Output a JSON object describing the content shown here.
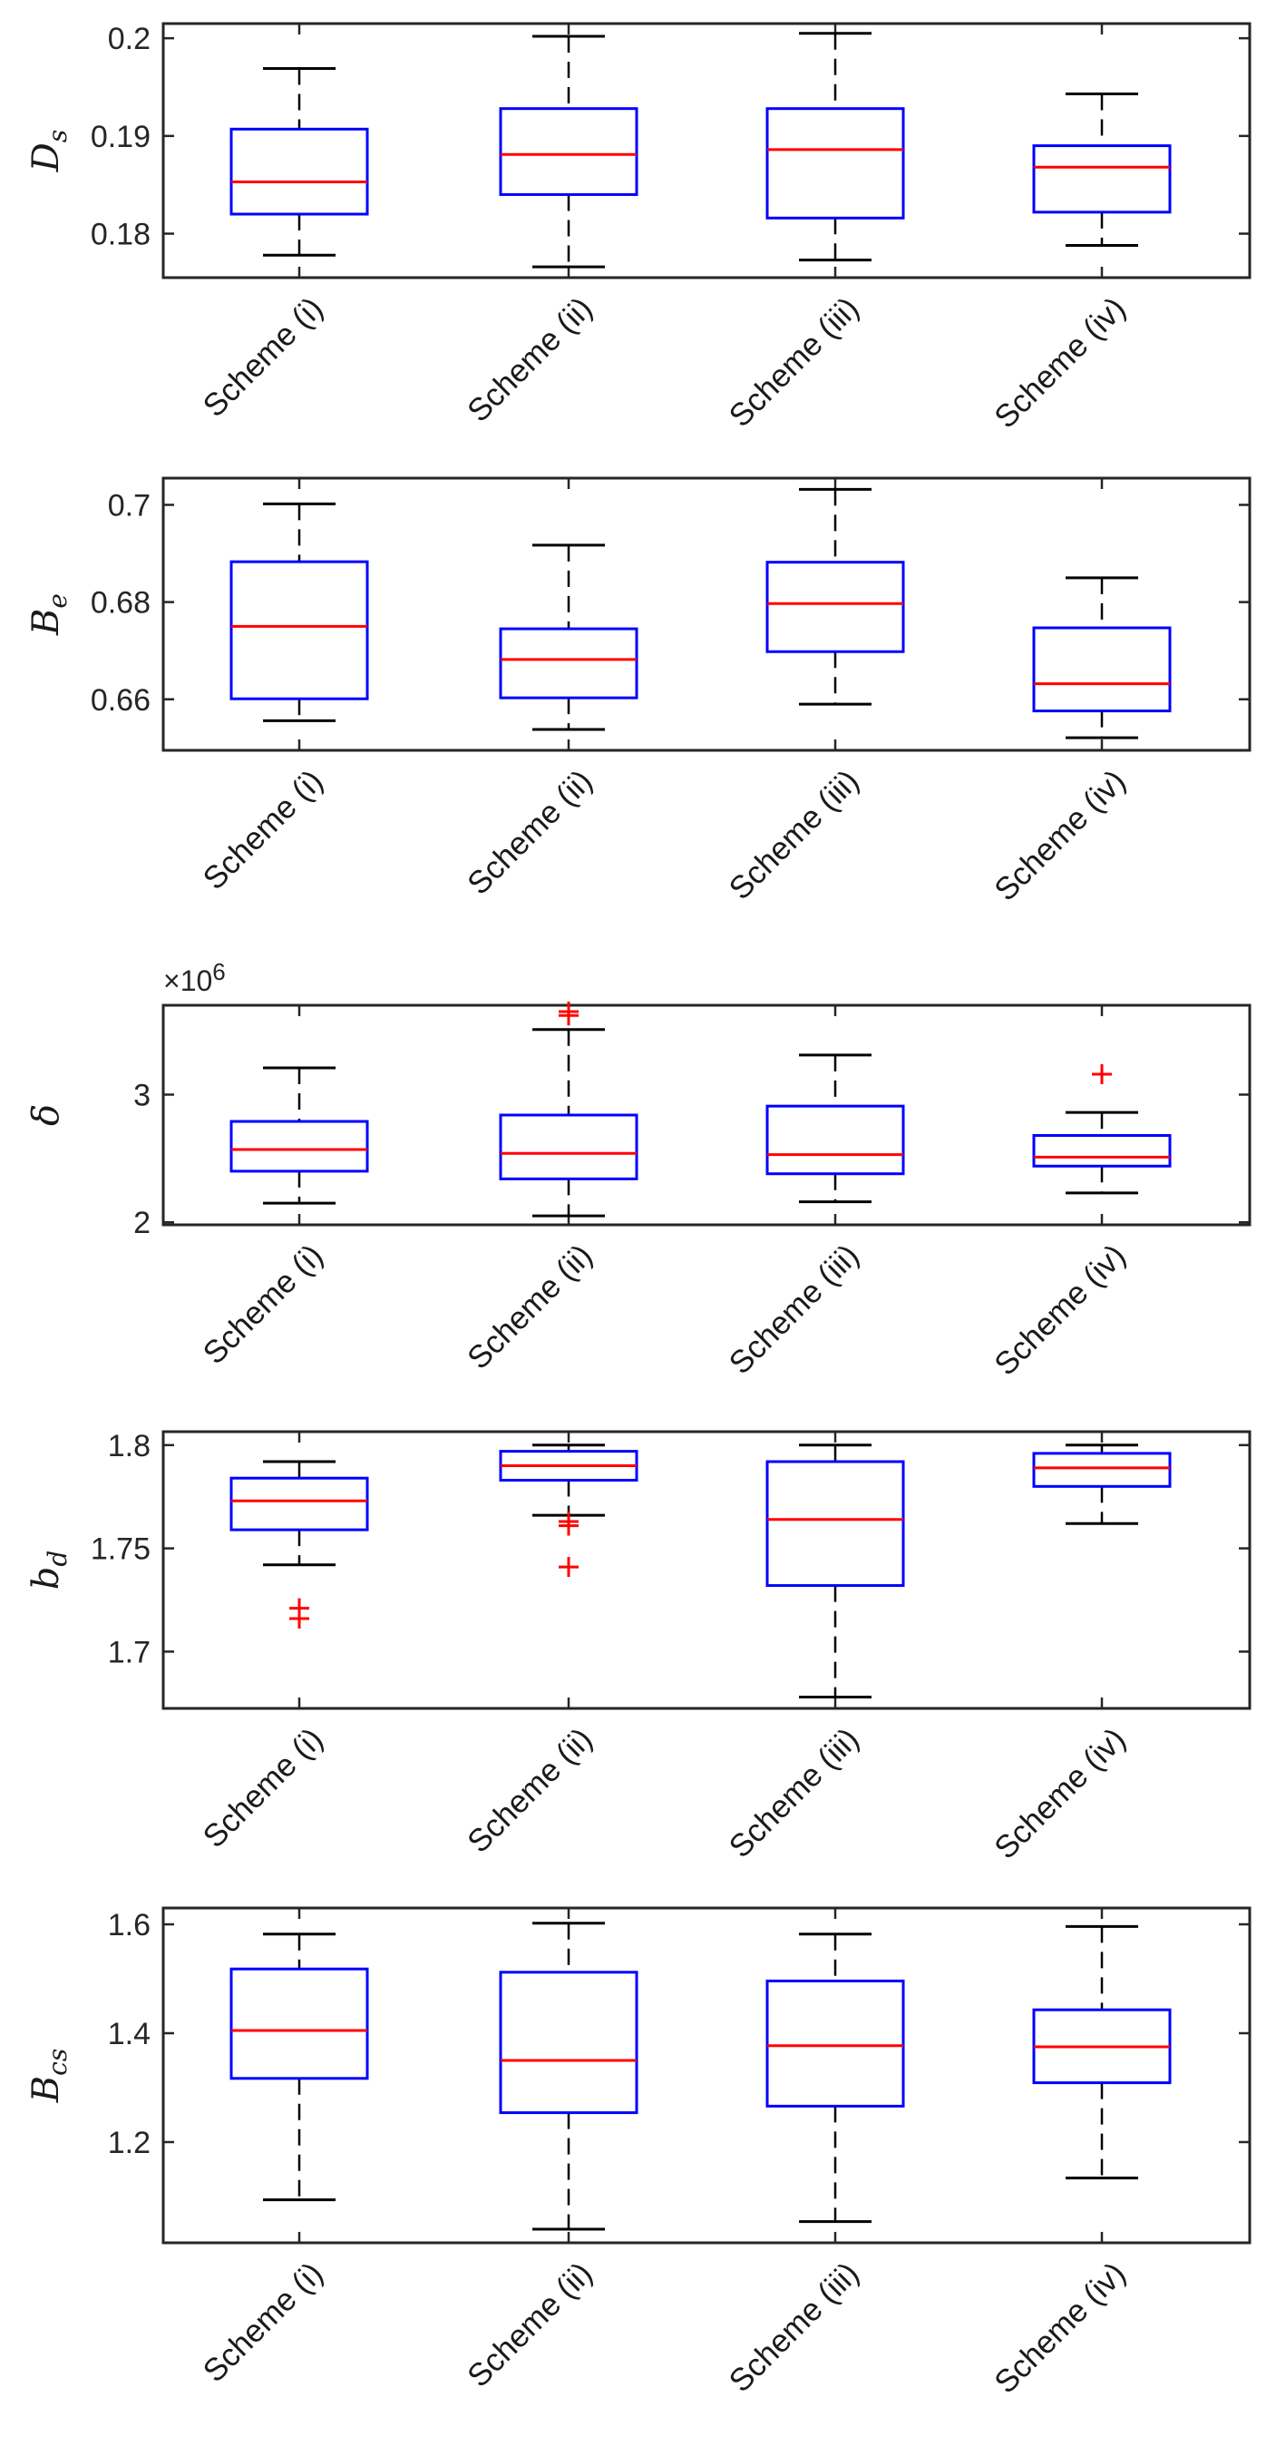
{
  "colors": {
    "box": "#0000ff",
    "median": "#ff0000",
    "whisker": "#000000",
    "outlier": "#ff0000",
    "axis": "#262626"
  },
  "chart_data": [
    {
      "type": "box",
      "ylabel": "D",
      "ylabel_sub": "s",
      "ylim": [
        0.1755,
        0.2015
      ],
      "yticks": [
        0.18,
        0.19,
        0.2
      ],
      "ytick_labels": [
        "0.18",
        "0.19",
        "0.2"
      ],
      "exponent_label": "",
      "categories": [
        "Scheme (i)",
        "Scheme (ii)",
        "Scheme (iii)",
        "Scheme (iv)"
      ],
      "boxes": [
        {
          "lower_whisker": 0.1778,
          "q1": 0.182,
          "median": 0.1853,
          "q3": 0.1907,
          "upper_whisker": 0.1969,
          "outliers": []
        },
        {
          "lower_whisker": 0.1766,
          "q1": 0.184,
          "median": 0.1881,
          "q3": 0.1928,
          "upper_whisker": 0.2002,
          "outliers": []
        },
        {
          "lower_whisker": 0.1773,
          "q1": 0.1816,
          "median": 0.1886,
          "q3": 0.1928,
          "upper_whisker": 0.2005,
          "outliers": []
        },
        {
          "lower_whisker": 0.1788,
          "q1": 0.1822,
          "median": 0.1868,
          "q3": 0.189,
          "upper_whisker": 0.1943,
          "outliers": []
        }
      ]
    },
    {
      "type": "box",
      "ylabel": "B",
      "ylabel_sub": "e",
      "ylim": [
        0.6495,
        0.7055
      ],
      "yticks": [
        0.66,
        0.68,
        0.7
      ],
      "ytick_labels": [
        "0.66",
        "0.68",
        "0.7"
      ],
      "exponent_label": "",
      "categories": [
        "Scheme (i)",
        "Scheme (ii)",
        "Scheme (iii)",
        "Scheme (iv)"
      ],
      "boxes": [
        {
          "lower_whisker": 0.6556,
          "q1": 0.6601,
          "median": 0.675,
          "q3": 0.6883,
          "upper_whisker": 0.7002,
          "outliers": []
        },
        {
          "lower_whisker": 0.6538,
          "q1": 0.6603,
          "median": 0.6682,
          "q3": 0.6745,
          "upper_whisker": 0.6917,
          "outliers": []
        },
        {
          "lower_whisker": 0.659,
          "q1": 0.6698,
          "median": 0.6797,
          "q3": 0.6882,
          "upper_whisker": 0.7032,
          "outliers": []
        },
        {
          "lower_whisker": 0.6521,
          "q1": 0.6576,
          "median": 0.6632,
          "q3": 0.6747,
          "upper_whisker": 0.685,
          "outliers": []
        }
      ]
    },
    {
      "type": "box",
      "ylabel": "δ",
      "ylabel_sub": "",
      "ylim": [
        1.98,
        3.7
      ],
      "yticks": [
        2,
        3
      ],
      "ytick_labels": [
        "2",
        "3"
      ],
      "exponent_label": "×10^6",
      "exponent_base": "×10",
      "exponent_power": "6",
      "categories": [
        "Scheme (i)",
        "Scheme (ii)",
        "Scheme (iii)",
        "Scheme (iv)"
      ],
      "boxes": [
        {
          "lower_whisker": 2.15,
          "q1": 2.4,
          "median": 2.57,
          "q3": 2.79,
          "upper_whisker": 3.21,
          "outliers": []
        },
        {
          "lower_whisker": 2.05,
          "q1": 2.34,
          "median": 2.54,
          "q3": 2.84,
          "upper_whisker": 3.51,
          "outliers": [
            3.62,
            3.65
          ]
        },
        {
          "lower_whisker": 2.16,
          "q1": 2.38,
          "median": 2.53,
          "q3": 2.91,
          "upper_whisker": 3.31,
          "outliers": []
        },
        {
          "lower_whisker": 2.23,
          "q1": 2.44,
          "median": 2.51,
          "q3": 2.68,
          "upper_whisker": 2.86,
          "outliers": [
            3.16
          ]
        }
      ]
    },
    {
      "type": "box",
      "ylabel": "b",
      "ylabel_sub": "d",
      "ylim": [
        1.6725,
        1.8065
      ],
      "yticks": [
        1.7,
        1.75,
        1.8
      ],
      "ytick_labels": [
        "1.7",
        "1.75",
        "1.8"
      ],
      "exponent_label": "",
      "categories": [
        "Scheme (i)",
        "Scheme (ii)",
        "Scheme (iii)",
        "Scheme (iv)"
      ],
      "boxes": [
        {
          "lower_whisker": 1.742,
          "q1": 1.759,
          "median": 1.773,
          "q3": 1.784,
          "upper_whisker": 1.792,
          "outliers": [
            1.716,
            1.721
          ]
        },
        {
          "lower_whisker": 1.766,
          "q1": 1.783,
          "median": 1.79,
          "q3": 1.797,
          "upper_whisker": 1.8,
          "outliers": [
            1.741,
            1.761,
            1.763
          ]
        },
        {
          "lower_whisker": 1.678,
          "q1": 1.732,
          "median": 1.764,
          "q3": 1.792,
          "upper_whisker": 1.8,
          "outliers": []
        },
        {
          "lower_whisker": 1.762,
          "q1": 1.78,
          "median": 1.789,
          "q3": 1.796,
          "upper_whisker": 1.8,
          "outliers": []
        }
      ]
    },
    {
      "type": "box",
      "ylabel": "B",
      "ylabel_sub": "cs",
      "ylim": [
        1.015,
        1.63
      ],
      "yticks": [
        1.2,
        1.4,
        1.6
      ],
      "ytick_labels": [
        "1.2",
        "1.4",
        "1.6"
      ],
      "exponent_label": "",
      "categories": [
        "Scheme (i)",
        "Scheme (ii)",
        "Scheme (iii)",
        "Scheme (iv)"
      ],
      "boxes": [
        {
          "lower_whisker": 1.094,
          "q1": 1.317,
          "median": 1.405,
          "q3": 1.518,
          "upper_whisker": 1.582,
          "outliers": []
        },
        {
          "lower_whisker": 1.04,
          "q1": 1.254,
          "median": 1.35,
          "q3": 1.512,
          "upper_whisker": 1.602,
          "outliers": []
        },
        {
          "lower_whisker": 1.054,
          "q1": 1.266,
          "median": 1.377,
          "q3": 1.496,
          "upper_whisker": 1.582,
          "outliers": []
        },
        {
          "lower_whisker": 1.134,
          "q1": 1.309,
          "median": 1.375,
          "q3": 1.443,
          "upper_whisker": 1.596,
          "outliers": []
        }
      ]
    }
  ]
}
